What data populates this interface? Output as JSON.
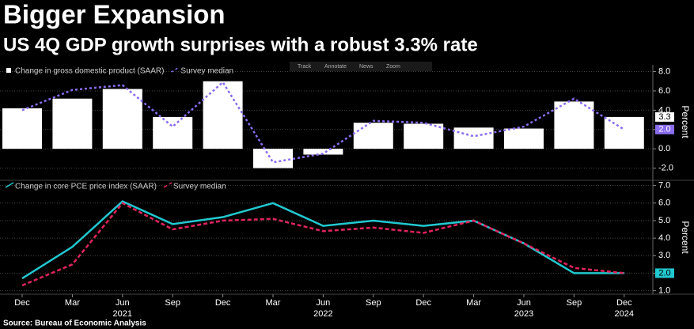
{
  "title": "Bigger Expansion",
  "subtitle": "US 4Q GDP growth surprises with a robust 3.3% rate",
  "toolbar": [
    "Track",
    "Annotate",
    "News",
    "Zoom"
  ],
  "source": "Source: Bureau of Economic Analysis",
  "chart_data": [
    {
      "type": "bar",
      "ylabel": "Percent",
      "ylim": [
        -3.1,
        8.7
      ],
      "yticks": [
        {
          "value": 8,
          "label": "8.0"
        },
        {
          "value": 6,
          "label": "6.0"
        },
        {
          "value": 4,
          "label": "4.0"
        },
        {
          "value": 2,
          "label": "2.0"
        },
        {
          "value": 0,
          "label": "0.0"
        },
        {
          "value": -2,
          "label": "-2.0"
        }
      ],
      "grid": true,
      "categories": [
        "Dec",
        "Mar",
        "Jun",
        "Sep",
        "Dec",
        "Mar",
        "Jun",
        "Sep",
        "Dec",
        "Mar",
        "Jun",
        "Sep",
        "Dec"
      ],
      "series": [
        {
          "name": "Change in gross domestic product (SAAR)",
          "kind": "bar",
          "color": "#ffffff",
          "values": [
            4.2,
            5.2,
            6.2,
            3.3,
            7.0,
            -2.0,
            -0.6,
            2.7,
            2.6,
            2.2,
            2.1,
            4.9,
            3.3
          ],
          "value_labels": [
            null,
            null,
            null,
            null,
            null,
            null,
            null,
            null,
            null,
            null,
            null,
            null,
            "3.3"
          ]
        },
        {
          "name": "Survey median",
          "kind": "line",
          "dash": "dotted",
          "color": "#8a6cf0",
          "values": [
            4.0,
            6.1,
            6.6,
            2.3,
            6.9,
            -1.4,
            -0.5,
            2.9,
            2.7,
            1.3,
            2.3,
            5.2,
            2.0
          ],
          "value_labels": [
            null,
            null,
            null,
            null,
            null,
            null,
            null,
            null,
            null,
            null,
            null,
            null,
            "2.0"
          ]
        }
      ]
    },
    {
      "type": "line",
      "ylabel": "Percent",
      "ylim": [
        0.8,
        7.3
      ],
      "yticks": [
        {
          "value": 7,
          "label": "7.0"
        },
        {
          "value": 6,
          "label": "6.0"
        },
        {
          "value": 5,
          "label": "5.0"
        },
        {
          "value": 4,
          "label": "4.0"
        },
        {
          "value": 3,
          "label": "3.0"
        },
        {
          "value": 2,
          "label": "2.0"
        },
        {
          "value": 1,
          "label": "1.0"
        }
      ],
      "grid": true,
      "categories": [
        "Dec",
        "Mar",
        "Jun",
        "Sep",
        "Dec",
        "Mar",
        "Jun",
        "Sep",
        "Dec",
        "Mar",
        "Jun",
        "Sep",
        "Dec"
      ],
      "years": [
        null,
        null,
        "2021",
        null,
        null,
        null,
        "2022",
        null,
        null,
        null,
        "2023",
        null,
        "2024"
      ],
      "series": [
        {
          "name": "Change in core PCE price index (SAAR)",
          "kind": "line",
          "dash": "solid",
          "color": "#22c8d0",
          "values": [
            1.7,
            3.5,
            6.1,
            4.8,
            5.2,
            6.0,
            4.7,
            5.0,
            4.7,
            5.0,
            3.7,
            2.0,
            2.0
          ],
          "value_labels": [
            null,
            null,
            null,
            null,
            null,
            null,
            null,
            null,
            null,
            null,
            null,
            null,
            "2.0"
          ]
        },
        {
          "name": "Survey median",
          "kind": "line",
          "dash": "dashed",
          "color": "#e0245e",
          "values": [
            1.3,
            2.5,
            6.0,
            4.5,
            5.0,
            5.1,
            4.4,
            4.6,
            4.3,
            5.0,
            3.7,
            2.3,
            2.0
          ]
        }
      ]
    }
  ]
}
